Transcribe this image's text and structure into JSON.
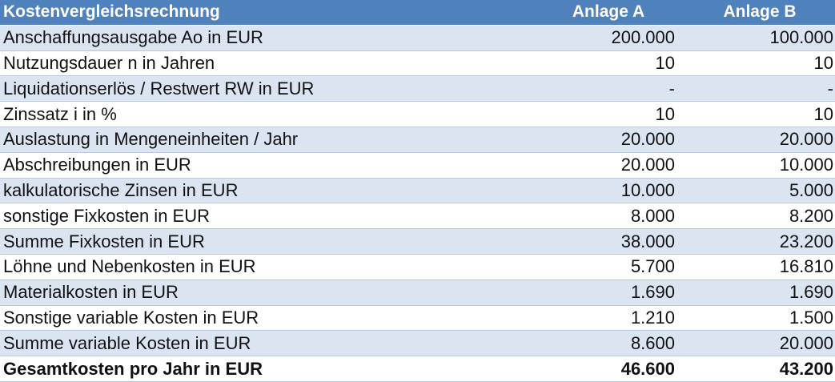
{
  "table": {
    "header": {
      "label": "Kostenvergleichsrechnung",
      "col_a": "Anlage A",
      "col_b": "Anlage B"
    },
    "rows": [
      {
        "label": "Anschaffungsausgabe Ao in  EUR",
        "a": "200.000",
        "b": "100.000"
      },
      {
        "label": "Nutzungsdauer n in Jahren",
        "a": "10",
        "b": "10"
      },
      {
        "label": "Liquidationserlös / Restwert RW in EUR",
        "a": "-",
        "b": "-"
      },
      {
        "label": "Zinssatz i in %",
        "a": "10",
        "b": "10"
      },
      {
        "label": "Auslastung in Mengeneinheiten / Jahr",
        "a": "20.000",
        "b": "20.000"
      },
      {
        "label": "Abschreibungen in EUR",
        "a": "20.000",
        "b": "10.000"
      },
      {
        "label": "kalkulatorische Zinsen in EUR",
        "a": "10.000",
        "b": "5.000"
      },
      {
        "label": "sonstige Fixkosten in EUR",
        "a": "8.000",
        "b": "8.200"
      },
      {
        "label": "Summe Fixkosten in EUR",
        "a": "38.000",
        "b": "23.200"
      },
      {
        "label": "Löhne und Nebenkosten in EUR",
        "a": "5.700",
        "b": "16.810"
      },
      {
        "label": "Materialkosten in EUR",
        "a": "1.690",
        "b": "1.690"
      },
      {
        "label": "Sonstige variable Kosten in EUR",
        "a": "1.210",
        "b": "1.500"
      },
      {
        "label": "Summe variable Kosten in EUR",
        "a": "8.600",
        "b": "20.000"
      },
      {
        "label": "Gesamtkosten pro Jahr in EUR",
        "a": "46.600",
        "b": "43.200"
      }
    ]
  },
  "colors": {
    "header_bg": "#4f81bd",
    "header_text": "#ffffff",
    "shaded_row": "#dbe5f1",
    "plain_row": "#ffffff"
  }
}
